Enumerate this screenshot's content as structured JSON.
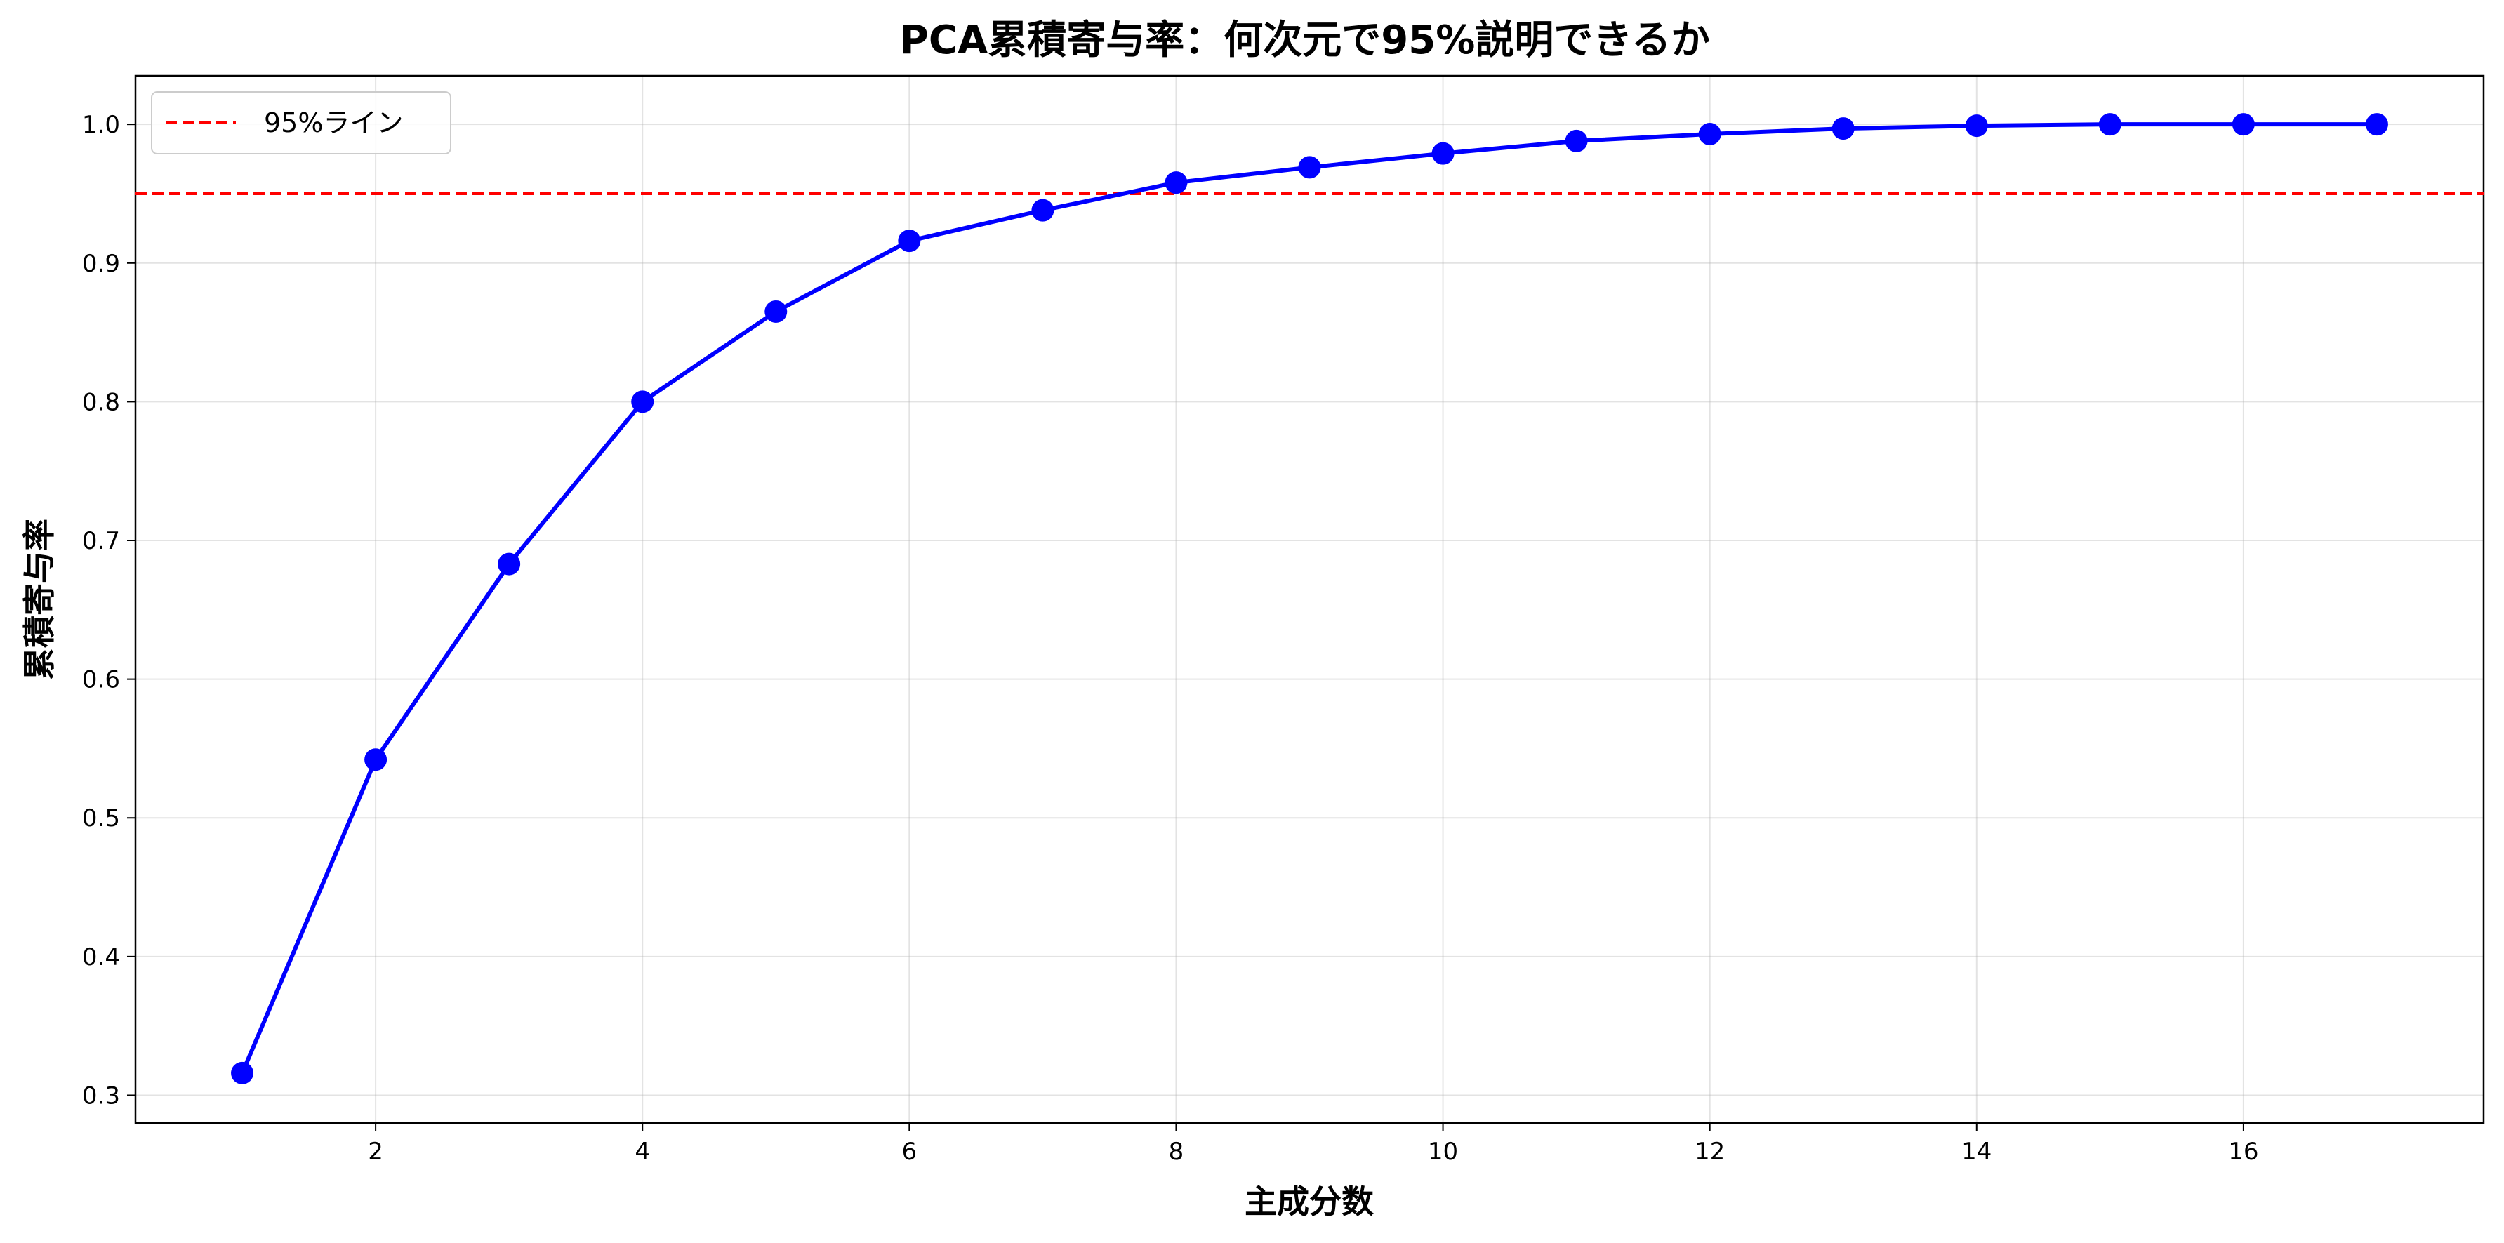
{
  "chart_data": {
    "type": "line",
    "title": "PCA累積寄与率：何次元で95%説明できるか",
    "xlabel": "主成分数",
    "ylabel": "累積寄与率",
    "x": [
      1,
      2,
      3,
      4,
      5,
      6,
      7,
      8,
      9,
      10,
      11,
      12,
      13,
      14,
      15,
      16,
      17
    ],
    "series": [
      {
        "color": "#0000ff",
        "values": [
          0.316,
          0.542,
          0.683,
          0.8,
          0.865,
          0.916,
          0.938,
          0.958,
          0.969,
          0.979,
          0.988,
          0.993,
          0.997,
          0.999,
          1.0,
          1.0,
          1.0
        ]
      }
    ],
    "reference_line": {
      "name": "95%ライン",
      "y": 0.95,
      "color": "#ff0000",
      "style": "dashed"
    },
    "xlim": [
      0.2,
      17.8
    ],
    "ylim": [
      0.28,
      1.035
    ],
    "x_ticks": [
      2,
      4,
      6,
      8,
      10,
      12,
      14,
      16
    ],
    "x_tick_labels": [
      "2",
      "4",
      "6",
      "8",
      "10",
      "12",
      "14",
      "16"
    ],
    "y_ticks": [
      0.3,
      0.4,
      0.5,
      0.6,
      0.7,
      0.8,
      0.9,
      1.0
    ],
    "y_tick_labels": [
      "0.3",
      "0.4",
      "0.5",
      "0.6",
      "0.7",
      "0.8",
      "0.9",
      "1.0"
    ],
    "grid": true,
    "legend_position": "top-left"
  }
}
